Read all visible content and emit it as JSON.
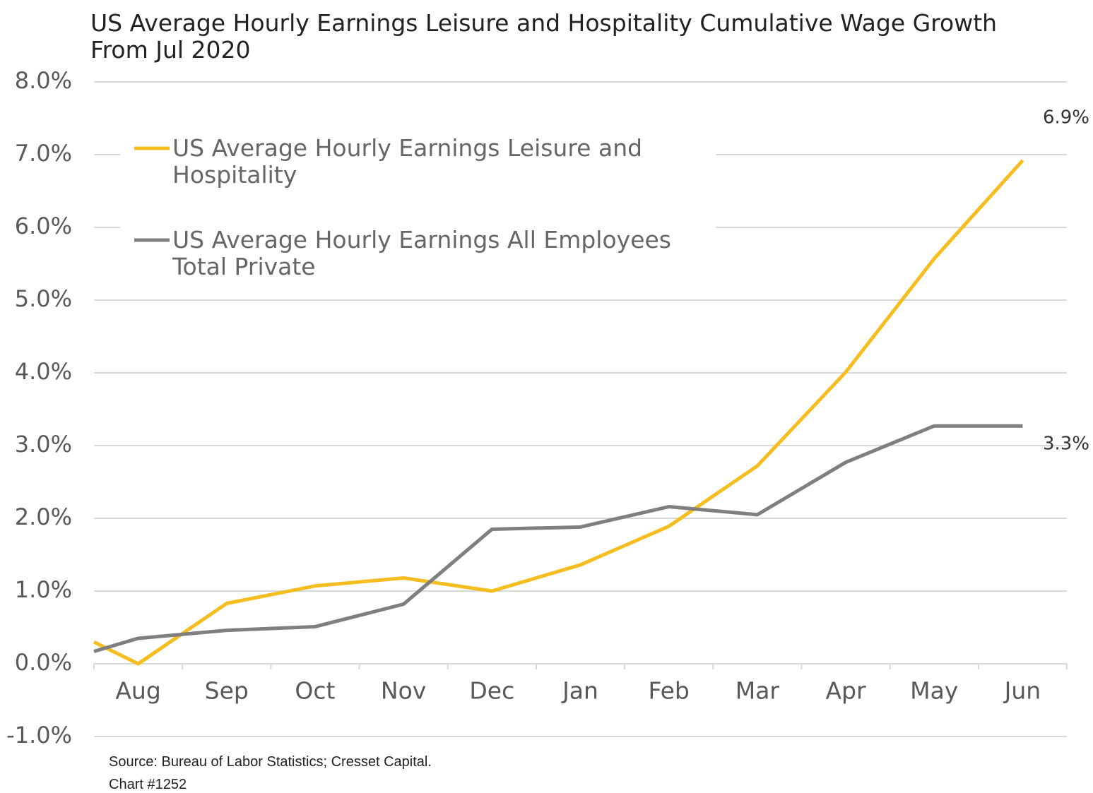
{
  "chart_data": {
    "type": "line",
    "title": "US Average Hourly Earnings  Leisure and Hospitality Cumulative Wage Growth From Jul 2020",
    "categories": [
      null,
      "Aug",
      "Sep",
      "Oct",
      "Nov",
      "Dec",
      "Jan",
      "Feb",
      "Mar",
      "Apr",
      "May",
      "Jun"
    ],
    "series": [
      {
        "name": "US Average Hourly Earnings  Leisure and Hospitality",
        "color": "#f5bd1f",
        "values": [
          0.3,
          0.0,
          0.83,
          1.07,
          1.18,
          1.0,
          1.36,
          1.89,
          2.72,
          4.01,
          5.57,
          6.92
        ],
        "value_labels": [
          null,
          null,
          null,
          null,
          null,
          null,
          null,
          null,
          null,
          null,
          null,
          "6.9%"
        ]
      },
      {
        "name": "US Average Hourly Earnings All Employees Total Private",
        "color": "#7f7f7f",
        "values": [
          0.17,
          0.35,
          0.46,
          0.51,
          0.82,
          1.85,
          1.88,
          2.16,
          2.05,
          2.77,
          3.27,
          3.27
        ],
        "value_labels": [
          null,
          null,
          null,
          null,
          null,
          null,
          null,
          null,
          null,
          null,
          null,
          "3.3%"
        ]
      }
    ],
    "ylim": [
      -1,
      8
    ],
    "yticks": [
      {
        "value": -1,
        "label": "-1.0%"
      },
      {
        "value": 0,
        "label": "0.0%"
      },
      {
        "value": 1,
        "label": "1.0%"
      },
      {
        "value": 2,
        "label": "2.0%"
      },
      {
        "value": 3,
        "label": "3.0%"
      },
      {
        "value": 4,
        "label": "4.0%"
      },
      {
        "value": 5,
        "label": "5.0%"
      },
      {
        "value": 6,
        "label": "6.0%"
      },
      {
        "value": 7,
        "label": "7.0%"
      },
      {
        "value": 8,
        "label": "8.0%"
      }
    ],
    "grid": true,
    "legend": "upper left",
    "notes": [
      "Source: Bureau of Labor Statistics; Cresset Capital.",
      "Chart #1252"
    ]
  }
}
